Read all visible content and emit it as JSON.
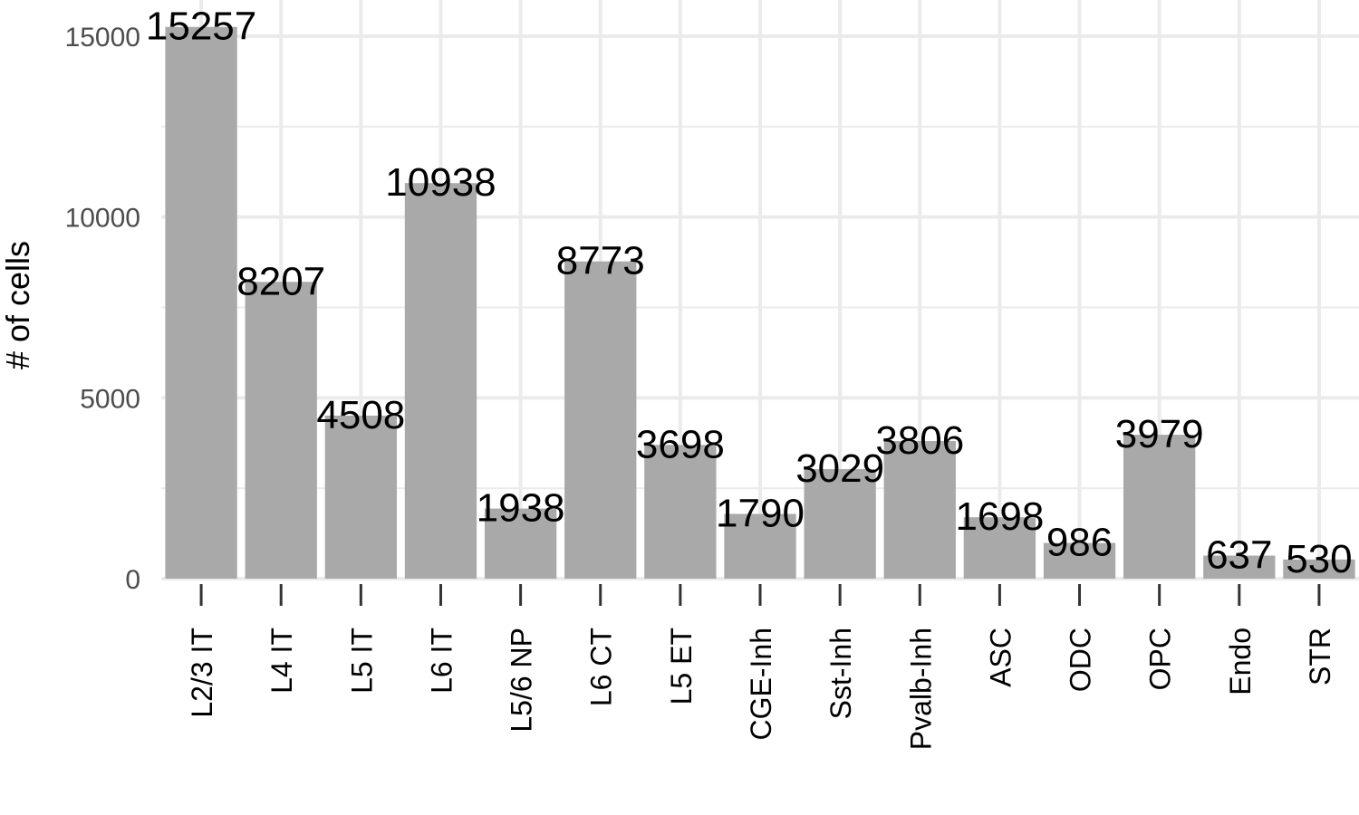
{
  "chart_data": {
    "type": "bar",
    "title": "",
    "xlabel": "",
    "ylabel": "# of cells",
    "ylim": [
      0,
      15000
    ],
    "yticks": [
      0,
      5000,
      10000,
      15000
    ],
    "grid": true,
    "categories": [
      "L2/3 IT",
      "L4 IT",
      "L5 IT",
      "L6 IT",
      "L5/6 NP",
      "L6 CT",
      "L5 ET",
      "CGE-Inh",
      "Sst-Inh",
      "Pvalb-Inh",
      "ASC",
      "ODC",
      "OPC",
      "Endo",
      "STR"
    ],
    "values": [
      15257,
      8207,
      4508,
      10938,
      1938,
      8773,
      3698,
      1790,
      3029,
      3806,
      1698,
      986,
      3979,
      637,
      530
    ],
    "colors": {
      "bar": "#a9a9a9",
      "grid": "#ebebeb",
      "tick_text": "#4d4d4d",
      "text": "#000000"
    }
  }
}
